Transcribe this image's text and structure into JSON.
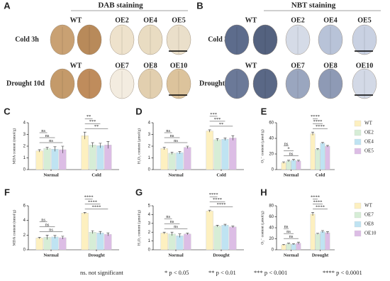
{
  "photo_panels": [
    {
      "label": "A",
      "title": "DAB staining",
      "rows": [
        "Cold 3h",
        "Drought 10d"
      ],
      "genotypes": [
        [
          "WT",
          "OE2",
          "OE4",
          "OE5"
        ],
        [
          "WT",
          "OE7",
          "OE8",
          "OE10"
        ]
      ]
    },
    {
      "label": "B",
      "title": "NBT staining",
      "rows": [
        "Cold 3h",
        "Drought 10d"
      ],
      "genotypes": [
        [
          "WT",
          "OE2",
          "OE4",
          "OE5"
        ],
        [
          "WT",
          "OE7",
          "OE8",
          "OE10"
        ]
      ]
    }
  ],
  "chart_data": [
    {
      "type": "bar",
      "label": "C",
      "y_label": "MDA content (nmol/g)",
      "categories": [
        "Normal",
        "Cold"
      ],
      "ylim": [
        0,
        4
      ],
      "yticks": [
        0,
        1,
        2,
        3,
        4
      ],
      "legend": false,
      "series": [
        {
          "name": "WT",
          "color": "#fdf0c0",
          "values": [
            1.6,
            2.9
          ],
          "errors": [
            0.1,
            0.3
          ]
        },
        {
          "name": "OE2",
          "color": "#d6edd6",
          "values": [
            1.8,
            2.1
          ],
          "errors": [
            0.1,
            0.2
          ]
        },
        {
          "name": "OE4",
          "color": "#bfe3f2",
          "values": [
            1.75,
            2.05
          ],
          "errors": [
            0.2,
            0.2
          ]
        },
        {
          "name": "OE5",
          "color": "#dcbde5",
          "values": [
            1.7,
            2.1
          ],
          "errors": [
            0.3,
            0.3
          ]
        }
      ],
      "significance": [
        [
          "ns",
          "ns",
          "ns"
        ],
        [
          "**",
          "***",
          "**"
        ]
      ]
    },
    {
      "type": "bar",
      "label": "D",
      "y_label": "H₂O₂ content (μmol/g)",
      "categories": [
        "Normal",
        "Cold"
      ],
      "ylim": [
        0,
        4
      ],
      "yticks": [
        0,
        1,
        2,
        3,
        4
      ],
      "legend": false,
      "series": [
        {
          "name": "WT",
          "color": "#fdf0c0",
          "values": [
            1.8,
            3.3
          ],
          "errors": [
            0.1,
            0.1
          ]
        },
        {
          "name": "OE2",
          "color": "#d6edd6",
          "values": [
            1.4,
            2.55
          ],
          "errors": [
            0.1,
            0.1
          ]
        },
        {
          "name": "OE4",
          "color": "#bfe3f2",
          "values": [
            1.45,
            2.6
          ],
          "errors": [
            0.1,
            0.1
          ]
        },
        {
          "name": "OE5",
          "color": "#dcbde5",
          "values": [
            1.9,
            2.7
          ],
          "errors": [
            0.1,
            0.2
          ]
        }
      ],
      "significance": [
        [
          "ns",
          "ns",
          "ns"
        ],
        [
          "***",
          "***",
          "**"
        ]
      ]
    },
    {
      "type": "bar",
      "label": "E",
      "y_label": "O₂⁻ content (μmol/g)",
      "categories": [
        "Normal",
        "Cold"
      ],
      "ylim": [
        0,
        60
      ],
      "yticks": [
        0,
        20,
        40,
        60
      ],
      "legend": true,
      "series": [
        {
          "name": "WT",
          "color": "#fdf0c0",
          "values": [
            9,
            46
          ],
          "errors": [
            1,
            2
          ]
        },
        {
          "name": "OE2",
          "color": "#d6edd6",
          "values": [
            11,
            26
          ],
          "errors": [
            1,
            1
          ]
        },
        {
          "name": "OE4",
          "color": "#bfe3f2",
          "values": [
            12,
            34
          ],
          "errors": [
            1,
            1
          ]
        },
        {
          "name": "OE5",
          "color": "#dcbde5",
          "values": [
            11,
            30
          ],
          "errors": [
            1,
            1
          ]
        }
      ],
      "significance": [
        [
          "ns",
          "*",
          "ns"
        ],
        [
          "****",
          "****",
          "****"
        ]
      ]
    },
    {
      "type": "bar",
      "label": "F",
      "y_label": "MDA content (nmol/g)",
      "categories": [
        "Normal",
        "Drought"
      ],
      "ylim": [
        0,
        6
      ],
      "yticks": [
        0,
        2,
        4,
        6
      ],
      "legend": false,
      "series": [
        {
          "name": "WT",
          "color": "#fdf0c0",
          "values": [
            1.6,
            5.0
          ],
          "errors": [
            0.1,
            0.1
          ]
        },
        {
          "name": "OE7",
          "color": "#d6edd6",
          "values": [
            1.7,
            2.4
          ],
          "errors": [
            0.3,
            0.2
          ]
        },
        {
          "name": "OE8",
          "color": "#bfe3f2",
          "values": [
            1.75,
            2.3
          ],
          "errors": [
            0.2,
            0.2
          ]
        },
        {
          "name": "OE10",
          "color": "#dcbde5",
          "values": [
            1.65,
            2.1
          ],
          "errors": [
            0.2,
            0.2
          ]
        }
      ],
      "significance": [
        [
          "ns",
          "ns",
          "ns"
        ],
        [
          "****",
          "****",
          "****"
        ]
      ]
    },
    {
      "type": "bar",
      "label": "G",
      "y_label": "H₂O₂ content (μmol/g)",
      "categories": [
        "Normal",
        "Drought"
      ],
      "ylim": [
        0,
        5
      ],
      "yticks": [
        0,
        1,
        2,
        3,
        4,
        5
      ],
      "legend": false,
      "series": [
        {
          "name": "WT",
          "color": "#fdf0c0",
          "values": [
            1.9,
            4.4
          ],
          "errors": [
            0.1,
            0.1
          ]
        },
        {
          "name": "OE7",
          "color": "#d6edd6",
          "values": [
            1.8,
            2.7
          ],
          "errors": [
            0.2,
            0.1
          ]
        },
        {
          "name": "OE8",
          "color": "#bfe3f2",
          "values": [
            1.6,
            2.8
          ],
          "errors": [
            0.2,
            0.1
          ]
        },
        {
          "name": "OE10",
          "color": "#dcbde5",
          "values": [
            1.8,
            2.6
          ],
          "errors": [
            0.1,
            0.1
          ]
        }
      ],
      "significance": [
        [
          "ns",
          "ns",
          "ns"
        ],
        [
          "****",
          "****",
          "****"
        ]
      ]
    },
    {
      "type": "bar",
      "label": "H",
      "y_label": "O₂⁻ content (μmol/g)",
      "categories": [
        "Normal",
        "Drought"
      ],
      "ylim": [
        0,
        80
      ],
      "yticks": [
        0,
        20,
        40,
        60,
        80
      ],
      "legend": true,
      "series": [
        {
          "name": "WT",
          "color": "#fdf0c0",
          "values": [
            9,
            65
          ],
          "errors": [
            1,
            3
          ]
        },
        {
          "name": "OE7",
          "color": "#d6edd6",
          "values": [
            11,
            29
          ],
          "errors": [
            1,
            1
          ]
        },
        {
          "name": "OE8",
          "color": "#bfe3f2",
          "values": [
            10,
            33
          ],
          "errors": [
            1,
            2
          ]
        },
        {
          "name": "OE10",
          "color": "#dcbde5",
          "values": [
            12,
            31
          ],
          "errors": [
            2,
            2
          ]
        }
      ],
      "significance": [
        [
          "ns",
          "ns",
          "ns"
        ],
        [
          "****",
          "****",
          "****"
        ]
      ]
    }
  ],
  "footnotes": [
    "ns. not significant",
    "* p < 0.05",
    "** p < 0.01",
    "*** p < 0.001",
    "**** p < 0.0001"
  ]
}
